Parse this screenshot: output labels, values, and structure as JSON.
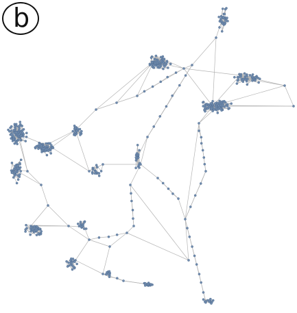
{
  "figure": {
    "panel_label": "b",
    "colors": {
      "edge": "#b4b4b4",
      "node": "#6f8bad",
      "node_stroke": "#4f6b8f",
      "label": "#111111"
    }
  }
}
